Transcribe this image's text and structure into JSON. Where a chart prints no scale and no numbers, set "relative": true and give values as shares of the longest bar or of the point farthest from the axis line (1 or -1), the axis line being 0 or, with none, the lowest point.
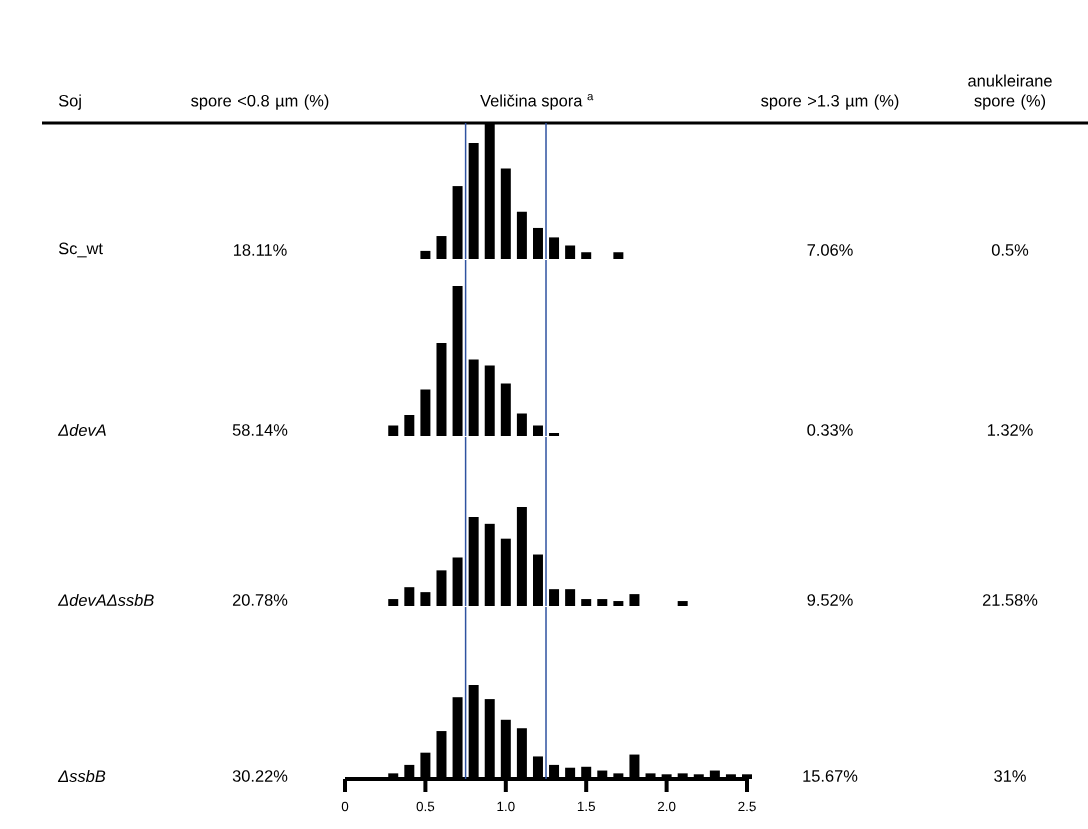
{
  "chart_data": [
    {
      "type": "other",
      "annotations": [
        "Soj",
        "spore <0.8 µm (%)",
        "Veličina spora $^{a}$",
        "spore >1.3 µm (%)",
        "anukleirane spore (%)"
      ]
    },
    {
      "type": "bar",
      "relative": true,
      "ylabel": "Sc_wt",
      "annotations": [
        "18.11%",
        "7.06%",
        "0.5%"
      ],
      "color": "#000000",
      "xlim": [
        0,
        2.5
      ],
      "tick_labels": false,
      "x": [
        0.5,
        0.6,
        0.7,
        0.8,
        0.9,
        1.0,
        1.1,
        1.2,
        1.3,
        1.4,
        1.5,
        1.7
      ],
      "values": [
        0.06,
        0.17,
        0.54,
        0.86,
        1,
        0.67,
        0.35,
        0.23,
        0.16,
        0.1,
        0.05,
        0.05
      ],
      "ref_lines": [
        {
          "axis": "x",
          "value": 0.75,
          "color": "#2f52a0"
        },
        {
          "axis": "x",
          "value": 1.25,
          "color": "#2f52a0"
        }
      ]
    },
    {
      "type": "bar",
      "relative": true,
      "ylabel": "*ΔdevA*",
      "annotations": [
        "58.14%",
        "0.33%",
        "1.32%"
      ],
      "color": "#000000",
      "xlim": [
        0,
        2.5
      ],
      "tick_labels": false,
      "x": [
        0.3,
        0.4,
        0.5,
        0.6,
        0.7,
        0.8,
        0.9,
        1.0,
        1.1,
        1.2,
        1.3
      ],
      "values": [
        0.07,
        0.14,
        0.31,
        0.62,
        1,
        0.51,
        0.47,
        0.35,
        0.15,
        0.07,
        0.02
      ],
      "ref_lines": [
        {
          "axis": "x",
          "value": 0.75,
          "color": "#2f52a0"
        },
        {
          "axis": "x",
          "value": 1.25,
          "color": "#2f52a0"
        }
      ]
    },
    {
      "type": "bar",
      "relative": true,
      "ylabel": "*ΔdevAΔssbB*",
      "annotations": [
        "20.78%",
        "9.52%",
        "21.58%"
      ],
      "color": "#000000",
      "xlim": [
        0,
        2.5
      ],
      "tick_labels": false,
      "x": [
        0.3,
        0.4,
        0.5,
        0.6,
        0.7,
        0.8,
        0.9,
        1.0,
        1.1,
        1.2,
        1.3,
        1.4,
        1.5,
        1.6,
        1.7,
        1.8,
        2.1
      ],
      "values": [
        0.07,
        0.19,
        0.14,
        0.36,
        0.49,
        0.9,
        0.83,
        0.68,
        1,
        0.52,
        0.17,
        0.17,
        0.07,
        0.07,
        0.05,
        0.12,
        0.05
      ],
      "ref_lines": [
        {
          "axis": "x",
          "value": 0.75,
          "color": "#2f52a0"
        },
        {
          "axis": "x",
          "value": 1.25,
          "color": "#2f52a0"
        }
      ]
    },
    {
      "type": "bar",
      "relative": true,
      "ylabel": "*ΔssbB*",
      "annotations": [
        "30.22%",
        "15.67%",
        "31%"
      ],
      "color": "#000000",
      "xlim": [
        0,
        2.5
      ],
      "tick_labels": "x",
      "xticks": [
        0,
        0.5,
        {
          "value": 1.0,
          "label": "1.0"
        },
        1.5,
        {
          "value": 2.0,
          "label": "2.0"
        },
        2.5
      ],
      "x": [
        0.3,
        0.4,
        0.5,
        0.6,
        0.7,
        0.8,
        0.9,
        1.0,
        1.1,
        1.2,
        1.3,
        1.4,
        1.5,
        1.6,
        1.7,
        1.8,
        1.9,
        2.0,
        2.1,
        2.2,
        2.3,
        2.4,
        2.5
      ],
      "values": [
        0.06,
        0.15,
        0.28,
        0.51,
        0.87,
        1,
        0.85,
        0.63,
        0.54,
        0.24,
        0.15,
        0.12,
        0.13,
        0.09,
        0.06,
        0.26,
        0.06,
        0.05,
        0.06,
        0.05,
        0.09,
        0.05,
        0.05
      ],
      "ref_lines": [
        {
          "axis": "x",
          "value": 0.75,
          "color": "#2f52a0"
        },
        {
          "axis": "x",
          "value": 1.25,
          "color": "#2f52a0"
        }
      ]
    }
  ]
}
